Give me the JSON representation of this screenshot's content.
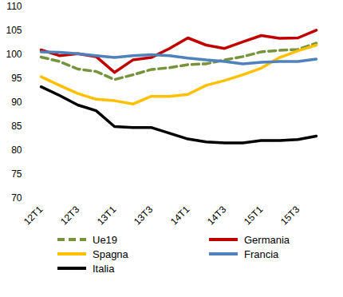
{
  "chart_data": {
    "type": "line",
    "categories": [
      "12T1",
      null,
      "12T3",
      null,
      "13T1",
      null,
      "13T3",
      null,
      "14T1",
      null,
      "14T3",
      null,
      "15T1",
      null,
      "15T3",
      null
    ],
    "series": [
      {
        "name": "Ue19",
        "color": "#77933c",
        "line_style": "dashed",
        "values": [
          99.5,
          98.6,
          97.0,
          96.5,
          94.8,
          95.8,
          96.9,
          97.3,
          97.9,
          98.1,
          98.9,
          99.6,
          100.6,
          100.9,
          101.1,
          102.4
        ]
      },
      {
        "name": "Germania",
        "color": "#c00000",
        "line_style": "solid",
        "values": [
          101.0,
          99.8,
          100.2,
          99.6,
          96.3,
          98.9,
          99.4,
          101.3,
          103.5,
          102.0,
          101.3,
          102.7,
          104.0,
          103.4,
          103.5,
          105.1
        ]
      },
      {
        "name": "Spagna",
        "color": "#ffc000",
        "line_style": "solid",
        "values": [
          95.4,
          93.6,
          91.9,
          90.7,
          90.4,
          89.7,
          91.3,
          91.3,
          91.7,
          93.6,
          94.6,
          95.8,
          97.2,
          99.4,
          100.8,
          102.0
        ]
      },
      {
        "name": "Francia",
        "color": "#4f81bd",
        "line_style": "solid",
        "values": [
          100.6,
          100.5,
          100.2,
          99.8,
          99.4,
          99.8,
          100.0,
          99.8,
          99.3,
          98.9,
          98.6,
          98.1,
          98.4,
          98.6,
          98.6,
          99.1
        ]
      },
      {
        "name": "Italia",
        "color": "#000000",
        "line_style": "solid",
        "values": [
          93.3,
          91.5,
          89.5,
          88.3,
          85.0,
          84.8,
          84.8,
          83.6,
          82.4,
          81.8,
          81.6,
          81.6,
          82.1,
          82.1,
          82.3,
          83.0
        ]
      }
    ],
    "ylim": [
      70,
      110
    ],
    "yticks": [
      70,
      75,
      80,
      85,
      90,
      95,
      100,
      105,
      110
    ],
    "grid": false,
    "legend": "bottom"
  }
}
